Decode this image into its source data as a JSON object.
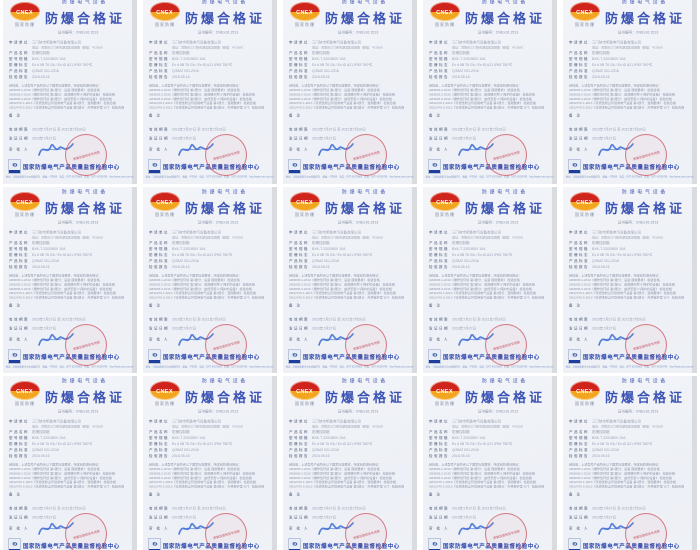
{
  "grid": {
    "rows": 3,
    "columns": 5,
    "count": 15
  },
  "colors": {
    "paper": "#eef1f6",
    "page_edge": "#d9dbde",
    "title_blue": "#3b53b4",
    "center_name_blue": "#2b46ad",
    "logo_red": "#cf241c",
    "logo_orange": "#f2a51f",
    "seal_red": "#c0394e",
    "signature_blue": "#3a6bd4"
  },
  "certificate": {
    "equipment_label": "防爆电气设备",
    "title": "防爆合格证",
    "logo": {
      "text": "CNEX",
      "caption": "国家防爆"
    },
    "cert_no_label": "证书编号：",
    "cert_no": "CNEx16.1513",
    "fields": [
      {
        "label": "申请单位",
        "value": "三门峡市明珠电气设备有限公司",
        "value2": "地址：河南省三门峡市湖滨区向阳路（邮编：472000）"
      },
      {
        "label": "产品名称",
        "value": "防爆控制箱"
      },
      {
        "label": "型号规格",
        "value": "BXK-T  220/380V  10A"
      },
      {
        "label": "防爆标志",
        "value": "Ex d ⅡB T6 Gb / Ex tD A21 IP65 T80℃"
      },
      {
        "label": "产品标准",
        "value": "Q/SMZ 001-2016"
      },
      {
        "label": "检验报告",
        "value": "2016.05.16"
      }
    ],
    "statement_lines": [
      "经检验，上述型号产品符合以下国家标准要求，特发给防爆合格证：",
      "GB3836.1-2010《爆炸性环境 第1部分：设备 通用要求》 检验合格",
      "GB3836.2-2010《爆炸性环境 第2部分：由隔爆外壳“d”保护的设备》 检验合格",
      "GB3836.3-2010《爆炸性环境 第3部分：由增安型“e”保护的设备》 检验合格",
      "GB12476.1-2013《可燃性粉尘环境用电气设备 第1部分：通用要求》 检验合格",
      "GB12476.5-2013《可燃性粉尘环境用电气设备 第5部分：外壳保护型“tD”》 检验合格"
    ],
    "remark_label": "备  注",
    "validity": {
      "label": "有效期限",
      "value": "2016年7月27日 至 2021年7月26日"
    },
    "issue": {
      "label": "发证日期",
      "value": "2016年7月27日"
    },
    "approver": {
      "label": "审 批 人"
    },
    "stamp": {
      "text": "质量监督检验专用章"
    },
    "footer": {
      "ex_logo": "Ex",
      "center_name": "国家防爆电气产品质量监督检验中心",
      "contact": "地址：河南省南阳市中州西路83号　邮编：473008　电话：0377-63270805　传真：0377-63224795　http://www.cnex.com.cn"
    }
  }
}
